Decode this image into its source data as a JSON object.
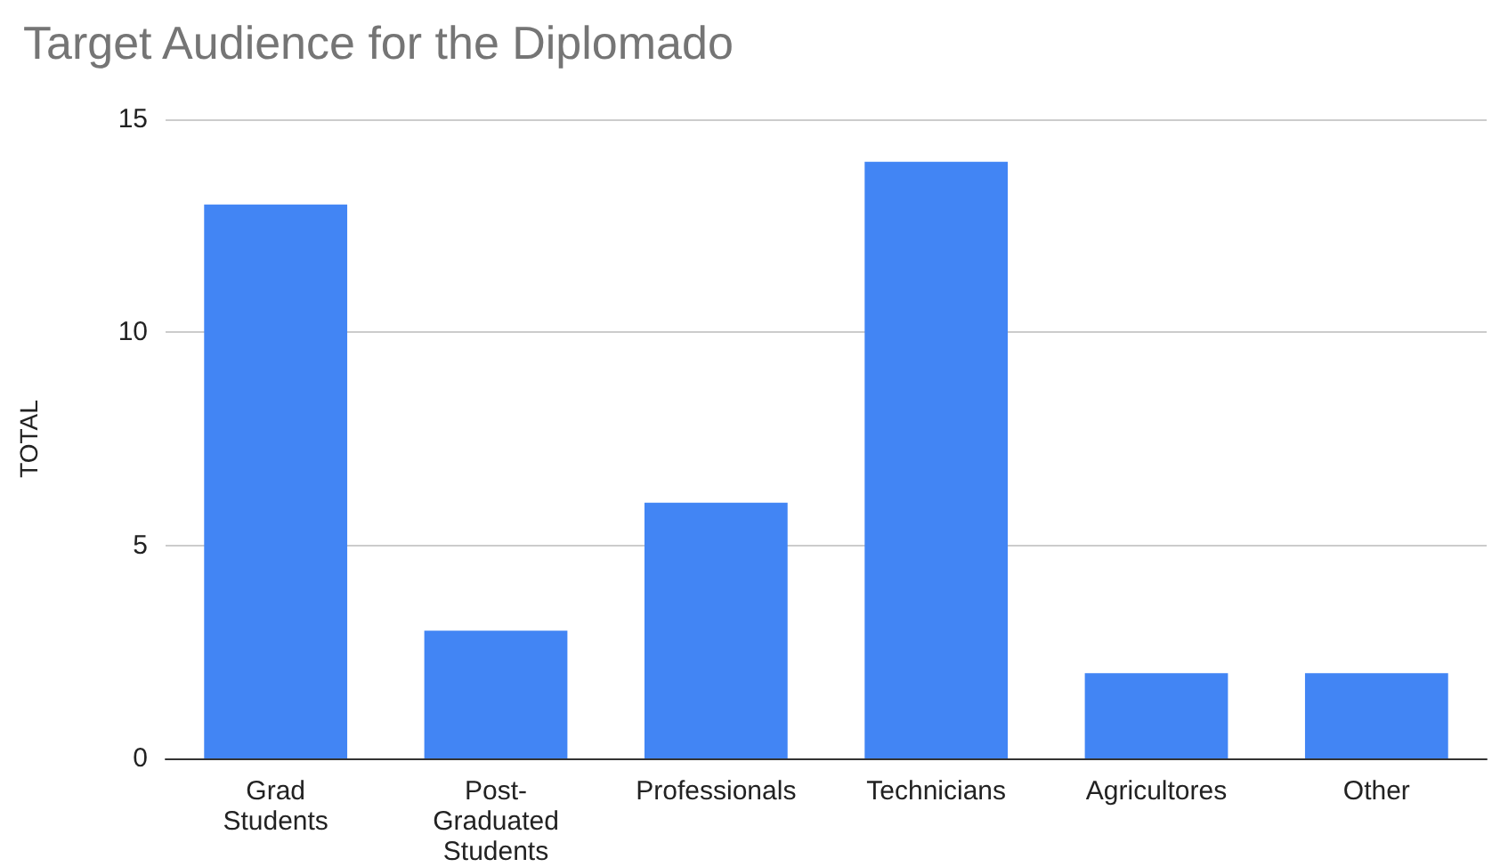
{
  "chart_data": {
    "type": "bar",
    "title": "Target Audience for the Diplomado",
    "ylabel": "TOTAL",
    "categories": [
      "Grad Students",
      "Post-Graduated Students",
      "Professionals",
      "Technicians",
      "Agricultores",
      "Other"
    ],
    "values": [
      13,
      3,
      6,
      14,
      2,
      2
    ],
    "color": "#4285f4",
    "ylim": [
      0,
      15
    ],
    "yticks": [
      0,
      5,
      10,
      15
    ],
    "grid": "y"
  }
}
